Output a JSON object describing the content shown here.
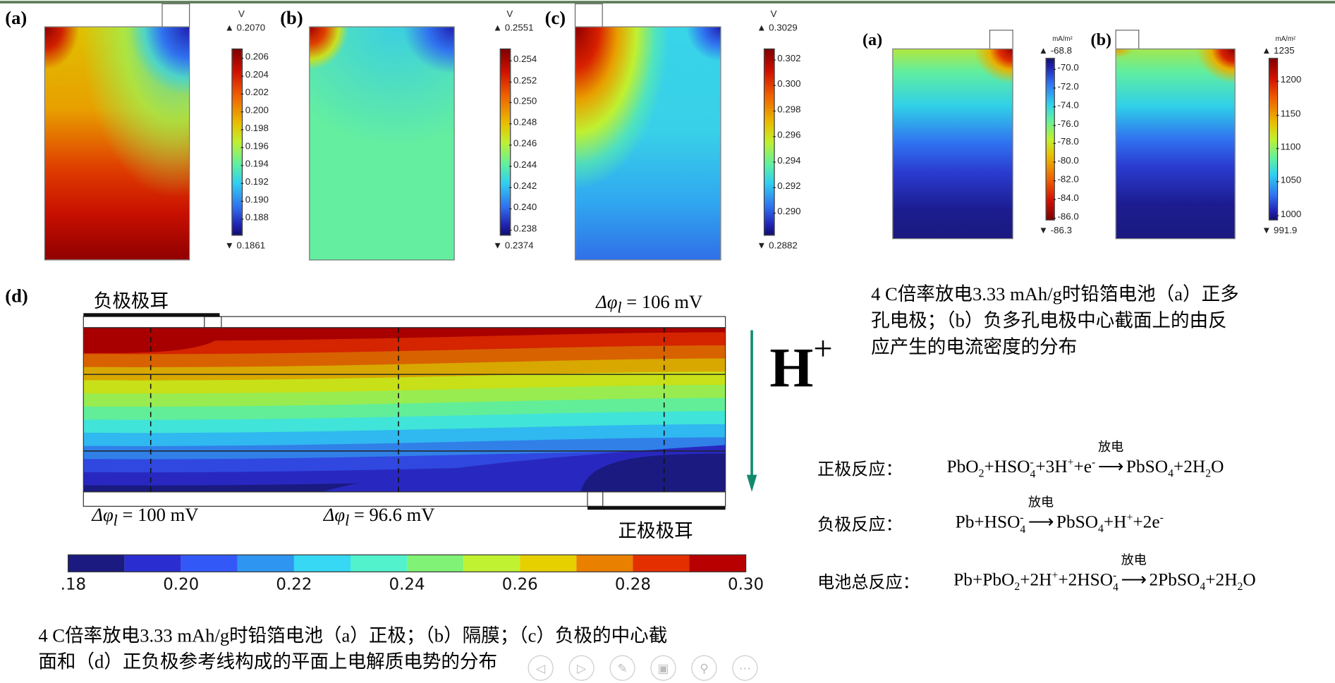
{
  "top_panels": [
    {
      "label": "(a)",
      "unit": "V",
      "max": "0.2070",
      "min": "0.1861",
      "maxv": 0.207,
      "minv": 0.1861,
      "ticks": [
        "0.206",
        "0.204",
        "0.202",
        "0.200",
        "0.198",
        "0.196",
        "0.194",
        "0.192",
        "0.190",
        "0.188"
      ]
    },
    {
      "label": "(b)",
      "unit": "V",
      "max": "0.2551",
      "min": "0.2374",
      "maxv": 0.2551,
      "minv": 0.2374,
      "ticks": [
        "0.254",
        "0.252",
        "0.250",
        "0.248",
        "0.246",
        "0.244",
        "0.242",
        "0.240",
        "0.238"
      ]
    },
    {
      "label": "(c)",
      "unit": "V",
      "max": "0.3029",
      "min": "0.2882",
      "maxv": 0.3029,
      "minv": 0.2882,
      "ticks": [
        "0.302",
        "0.300",
        "0.298",
        "0.296",
        "0.294",
        "0.292",
        "0.290"
      ]
    }
  ],
  "right_panels": [
    {
      "label": "(a)",
      "unit": "mA/m²",
      "max": "-68.8",
      "min": "-86.3",
      "maxv": -68.8,
      "minv": -86.3,
      "ticks": [
        "-70.0",
        "-72.0",
        "-74.0",
        "-76.0",
        "-78.0",
        "-80.0",
        "-82.0",
        "-84.0",
        "-86.0"
      ]
    },
    {
      "label": "(b)",
      "unit": "mA/m²",
      "max": "1235",
      "min": "991.9",
      "maxv": 1235,
      "minv": 991.9,
      "ticks": [
        "1200",
        "1150",
        "1100",
        "1050",
        "1000"
      ]
    }
  ],
  "right_caption": [
    "4 C倍率放电3.33 mAh/g时铅箔电池（a）正多",
    "孔电极；（b）负多孔电极中心截面上的由反",
    "应产生的电流密度的分布"
  ],
  "panel_d": {
    "label": "(d)",
    "neg_tab": "负极极耳",
    "pos_tab": "正极极耳",
    "dphi_top_right": "Δφ",
    "dphi_top_right_val": " = 106 mV",
    "dphi_bottom_left_val": " = 100 mV",
    "dphi_bottom_mid_val": " = 96.6 mV",
    "dphi_sub": "l",
    "ion": "H",
    "ion_charge": "+",
    "arrow_color": "#138a6e",
    "colorbar": {
      "ticks": [
        "0.18",
        "0.20",
        "0.22",
        "0.24",
        "0.26",
        "0.28",
        "0.30"
      ],
      "levels": [
        0.18,
        0.19,
        0.2,
        0.21,
        0.22,
        0.23,
        0.24,
        0.25,
        0.26,
        0.27,
        0.28,
        0.29,
        0.3
      ],
      "colors": [
        "#1a1a80",
        "#2a2ed0",
        "#3358f8",
        "#2e96f0",
        "#36d8f4",
        "#52f2cc",
        "#80f276",
        "#c0f232",
        "#e6d000",
        "#ea8000",
        "#e43000",
        "#b80000"
      ]
    },
    "field_colors": [
      "#a80000",
      "#d42400",
      "#d86200",
      "#d8a800",
      "#c8e018",
      "#98ec50",
      "#62ee98",
      "#40e4d8",
      "#30b8f0",
      "#3080e8",
      "#3048e0",
      "#2828c0",
      "#1a1a80"
    ]
  },
  "reactions": [
    {
      "label": "正极反应：",
      "tokens": [
        {
          "t": "PbO"
        },
        {
          "sub": "2"
        },
        {
          "t": "+HSO"
        },
        {
          "subsup": [
            "4",
            "-"
          ]
        },
        {
          "t": "+3H"
        },
        {
          "sup": "+"
        },
        {
          "t": "+e"
        },
        {
          "sup": "-"
        },
        {
          "arrow": "放电"
        },
        {
          "t": "PbSO"
        },
        {
          "sub": "4"
        },
        {
          "t": "+2H"
        },
        {
          "sub": "2"
        },
        {
          "t": "O"
        }
      ]
    },
    {
      "label": "负极反应：",
      "tokens": [
        {
          "t": "Pb+HSO"
        },
        {
          "subsup": [
            "4",
            "-"
          ]
        },
        {
          "arrow": "放电"
        },
        {
          "t": "PbSO"
        },
        {
          "sub": "4"
        },
        {
          "t": "+H"
        },
        {
          "sup": "+"
        },
        {
          "t": "+2e"
        },
        {
          "sup": "-"
        }
      ]
    },
    {
      "label": "电池总反应：",
      "tokens": [
        {
          "t": "Pb+PbO"
        },
        {
          "sub": "2"
        },
        {
          "t": "+2H"
        },
        {
          "sup": "+"
        },
        {
          "t": "+2HSO"
        },
        {
          "subsup": [
            "4",
            "-"
          ]
        },
        {
          "arrow": "放电"
        },
        {
          "t": "2PbSO"
        },
        {
          "sub": "4"
        },
        {
          "t": "+2H"
        },
        {
          "sub": "2"
        },
        {
          "t": "O"
        }
      ]
    }
  ],
  "bottom_caption": [
    "4 C倍率放电3.33 mAh/g时铅箔电池（a）正极；（b）隔膜；（c）负极的中心截",
    "面和（d）正负极参考线构成的平面上电解质电势的分布"
  ],
  "nav": [
    {
      "name": "previous-icon",
      "glyph": "◁"
    },
    {
      "name": "next-icon",
      "glyph": "▷"
    },
    {
      "name": "pen-icon",
      "glyph": "✎"
    },
    {
      "name": "slides-icon",
      "glyph": "▣"
    },
    {
      "name": "zoom-icon",
      "glyph": "⚲"
    },
    {
      "name": "more-icon",
      "glyph": "⋯"
    }
  ]
}
